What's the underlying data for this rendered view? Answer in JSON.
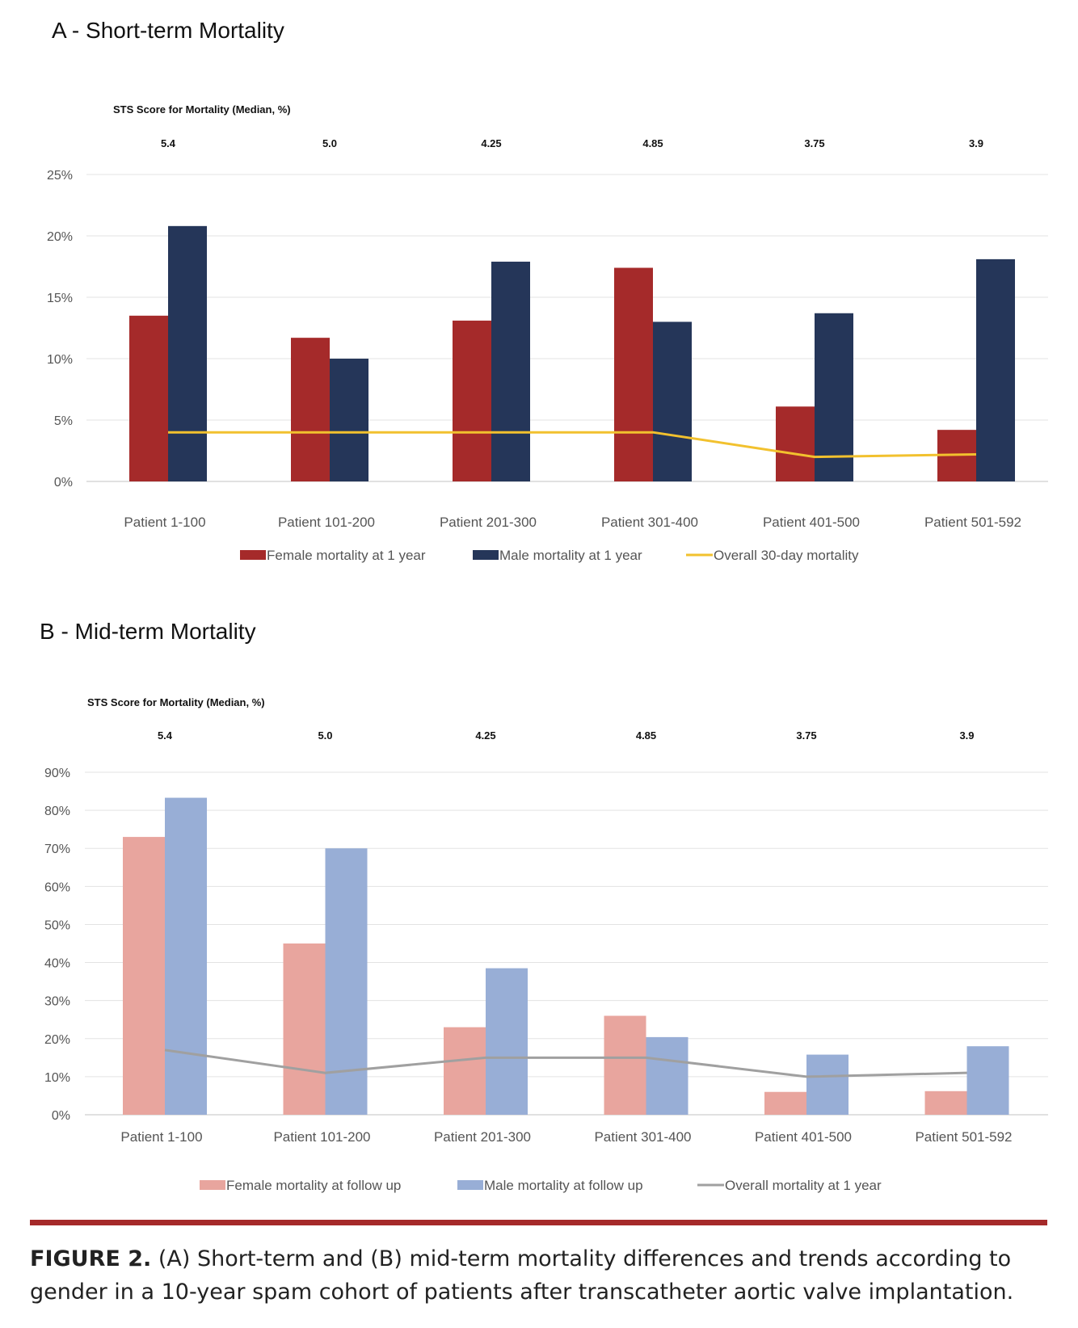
{
  "figure": {
    "caption_label": "FIGURE 2.",
    "caption_text": "(A) Short-term and (B) mid-term mortality differences and trends according to gender in a 10-year spam cohort of patients after transcatheter aortic valve implantation."
  },
  "colors": {
    "female_a": "#a52a2a",
    "male_a": "#253659",
    "line_a": "#f2c12e",
    "female_b": "#e8a59e",
    "male_b": "#98aed6",
    "line_b": "#a0a0a0",
    "rule": "#a52a2a"
  },
  "chart_data": [
    {
      "id": "A",
      "type": "bar",
      "title": "A - Short-term Mortality",
      "sts_label": "STS Score for Mortality (Median, %)",
      "sts_values": [
        "5.4",
        "5.0",
        "4.25",
        "4.85",
        "3.75",
        "3.9"
      ],
      "categories": [
        "Patient 1-100",
        "Patient 101-200",
        "Patient 201-300",
        "Patient 301-400",
        "Patient 401-500",
        "Patient 501-592"
      ],
      "ylim": [
        0,
        25
      ],
      "yticks": [
        "0%",
        "5%",
        "10%",
        "15%",
        "20%",
        "25%"
      ],
      "series": [
        {
          "name": "Female mortality at 1 year",
          "kind": "bar",
          "values": [
            13.5,
            11.7,
            13.1,
            17.4,
            6.1,
            4.2
          ]
        },
        {
          "name": "Male mortality at 1 year",
          "kind": "bar",
          "values": [
            20.8,
            10.0,
            17.9,
            13.0,
            13.7,
            18.1
          ]
        },
        {
          "name": "Overall 30-day mortality",
          "kind": "line",
          "values": [
            4.0,
            4.0,
            4.0,
            4.0,
            2.0,
            2.2
          ]
        }
      ],
      "grid": true,
      "legend": "bottom"
    },
    {
      "id": "B",
      "type": "bar",
      "title": "B - Mid-term Mortality",
      "sts_label": "STS Score for Mortality (Median, %)",
      "sts_values": [
        "5.4",
        "5.0",
        "4.25",
        "4.85",
        "3.75",
        "3.9"
      ],
      "categories": [
        "Patient 1-100",
        "Patient 101-200",
        "Patient 201-300",
        "Patient 301-400",
        "Patient 401-500",
        "Patient 501-592"
      ],
      "ylim": [
        0,
        90
      ],
      "yticks": [
        "0%",
        "10%",
        "20%",
        "30%",
        "40%",
        "50%",
        "60%",
        "70%",
        "80%",
        "90%"
      ],
      "series": [
        {
          "name": "Female mortality at follow up",
          "kind": "bar",
          "values": [
            73,
            45,
            23,
            26,
            6,
            6.2
          ]
        },
        {
          "name": "Male mortality at follow up",
          "kind": "bar",
          "values": [
            83.3,
            70,
            38.5,
            20.4,
            15.8,
            18
          ]
        },
        {
          "name": "Overall mortality at 1 year",
          "kind": "line",
          "values": [
            17,
            11,
            15,
            15,
            10,
            11
          ]
        }
      ],
      "grid": true,
      "legend": "bottom"
    }
  ]
}
